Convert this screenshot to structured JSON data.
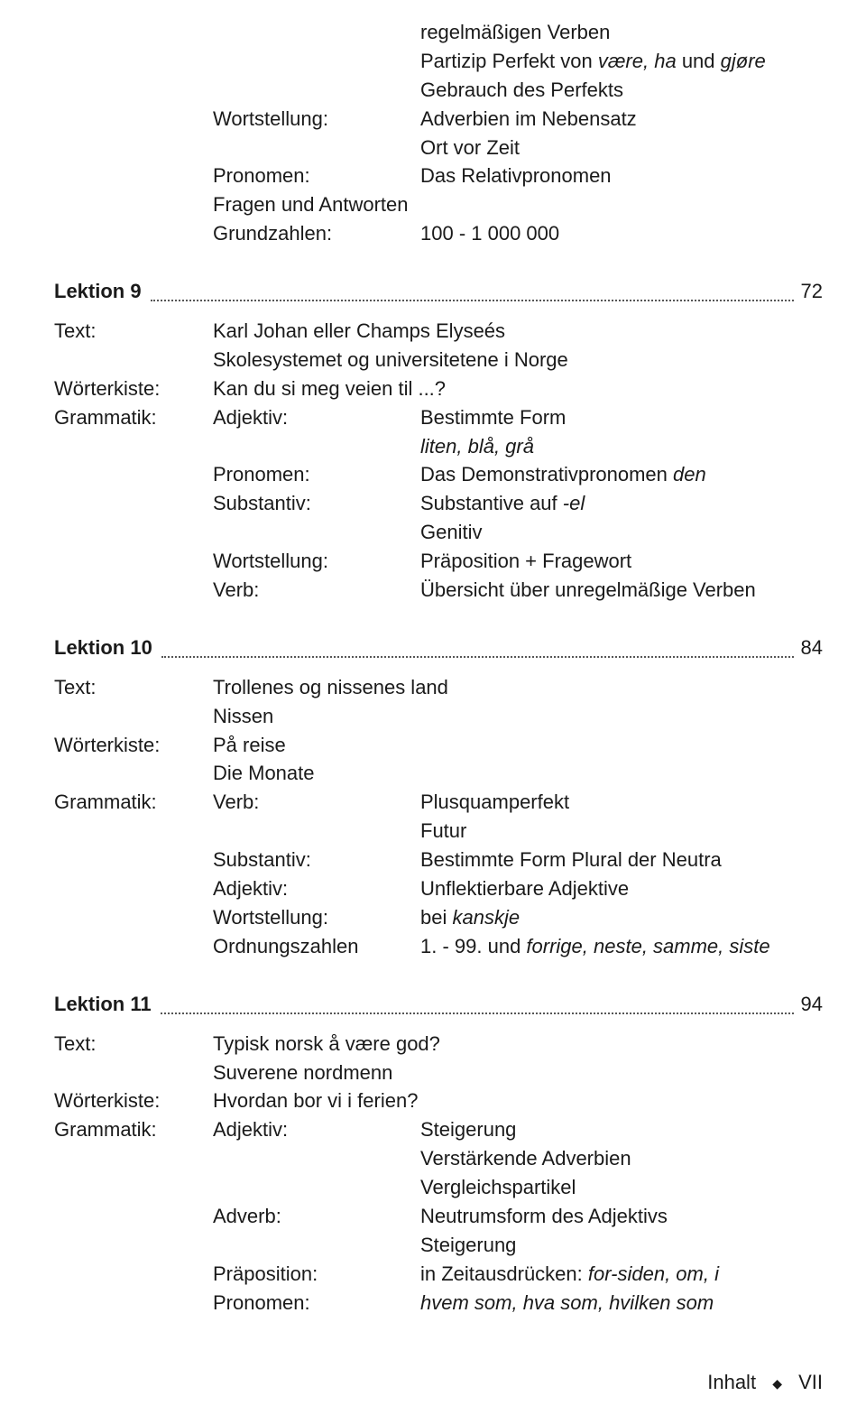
{
  "intro": {
    "wortstellung_label": "Wortstellung:",
    "pronomen_label": "Pronomen:",
    "fragen": "Fragen und Antworten",
    "grundzahlen_label": "Grundzahlen:",
    "col_right": {
      "l1": "regelmäßigen Verben",
      "l2a": "Partizip Perfekt von ",
      "l2b": "være, ha",
      "l2c": " und ",
      "l2d": "gjøre",
      "l3": "Gebrauch des Perfekts",
      "l4": "Adverbien im Nebensatz",
      "l5": "Ort vor Zeit",
      "l6": "Das Relativpronomen",
      "l7": "100 - 1 000 000"
    }
  },
  "lek9": {
    "title": "Lektion 9",
    "page": "72",
    "text_label": "Text:",
    "woerterkiste_label": "Wörterkiste:",
    "grammatik_label": "Grammatik:",
    "text_l1": "Karl Johan eller Champs Elyseés",
    "text_l2": "Skolesystemet og universitetene i Norge",
    "wk": "Kan du si meg veien til ...?",
    "adjektiv_label": "Adjektiv:",
    "pronomen_label": "Pronomen:",
    "substantiv_label": "Substantiv:",
    "wortstellung_label": "Wortstellung:",
    "verb_label": "Verb:",
    "adj_r1": "Bestimmte Form",
    "adj_r2": "liten, blå, grå",
    "pron_r1a": "Das Demonstrativpronomen ",
    "pron_r1b": "den",
    "sub_r1a": "Substantive auf ",
    "sub_r1b": "-el",
    "sub_r2": "Genitiv",
    "wort_r1": "Präposition + Fragewort",
    "verb_r1": "Übersicht über unregelmäßige Verben"
  },
  "lek10": {
    "title": "Lektion 10",
    "page": "84",
    "text_label": "Text:",
    "woerterkiste_label": "Wörterkiste:",
    "grammatik_label": "Grammatik:",
    "text_l1": "Trollenes og nissenes land",
    "text_l2": "Nissen",
    "wk_l1": "På reise",
    "wk_l2": "Die Monate",
    "verb_label": "Verb:",
    "substantiv_label": "Substantiv:",
    "adjektiv_label": "Adjektiv:",
    "wortstellung_label": "Wortstellung:",
    "ordnung_label": "Ordnungszahlen",
    "verb_r1": "Plusquamperfekt",
    "verb_r2": "Futur",
    "sub_r1": "Bestimmte Form Plural der Neutra",
    "adj_r1": "Unflektierbare Adjektive",
    "wort_r1a": "bei ",
    "wort_r1b": "kanskje",
    "ord_r1a": "1. - 99. und ",
    "ord_r1b": "forrige, neste, samme, siste"
  },
  "lek11": {
    "title": "Lektion 11",
    "page": "94",
    "text_label": "Text:",
    "woerterkiste_label": "Wörterkiste:",
    "grammatik_label": "Grammatik:",
    "text_l1": "Typisk norsk å være god?",
    "text_l2": "Suverene nordmenn",
    "wk": "Hvordan bor vi i ferien?",
    "adjektiv_label": "Adjektiv:",
    "adverb_label": "Adverb:",
    "praep_label": "Präposition:",
    "pronomen_label": "Pronomen:",
    "adj_r1": "Steigerung",
    "adj_r2": "Verstärkende Adverbien",
    "adj_r3": "Vergleichspartikel",
    "adv_r1": "Neutrumsform des Adjektivs",
    "adv_r2": "Steigerung",
    "praep_r1a": "in Zeitausdrücken: ",
    "praep_r1b": "for-siden, om, i",
    "pron_r1": "hvem som, hva som, hvilken som"
  },
  "footer": {
    "inhalt": "Inhalt",
    "page": "VII"
  }
}
